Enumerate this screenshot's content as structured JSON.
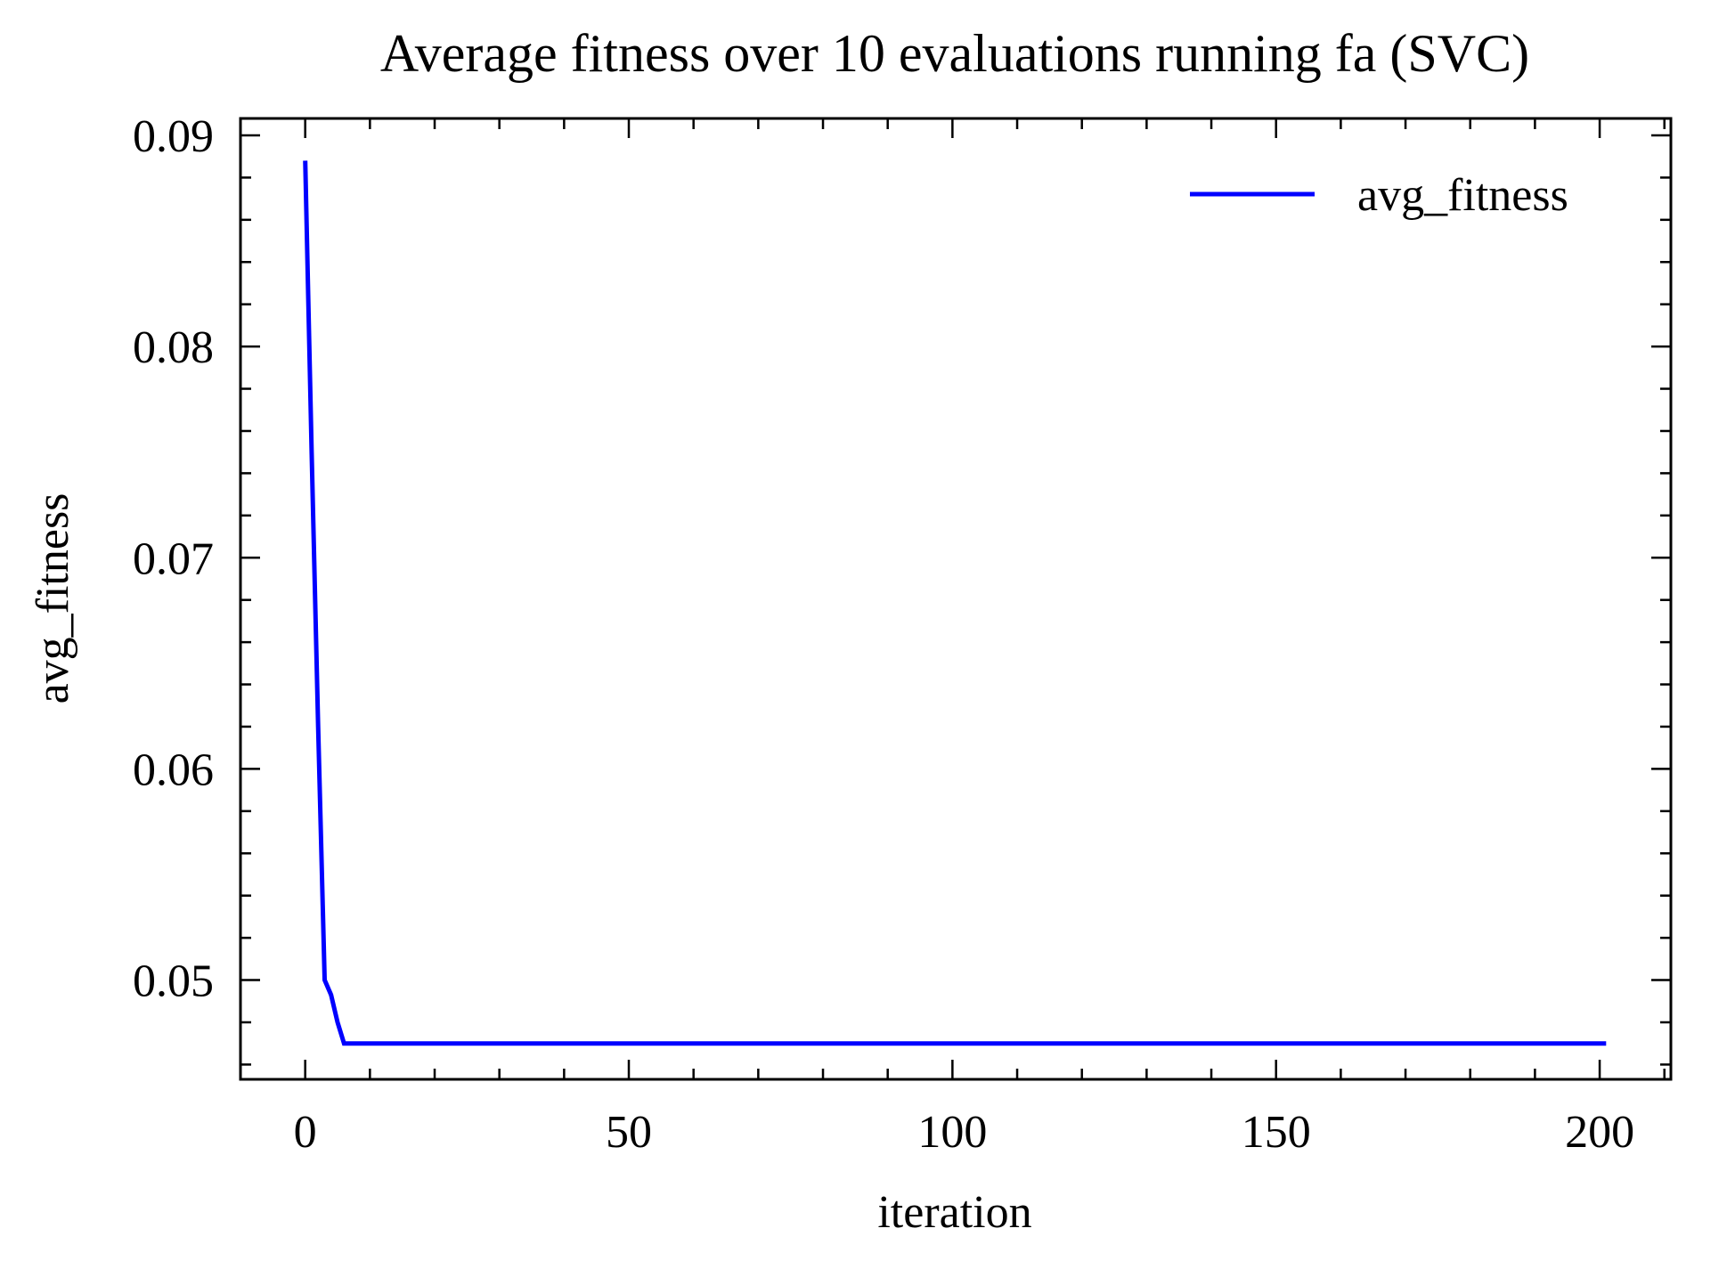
{
  "chart_data": {
    "type": "line",
    "title": "Average fitness over 10 evaluations running fa (SVC)",
    "xlabel": "iteration",
    "ylabel": "avg_fitness",
    "xlim": [
      -10,
      211
    ],
    "ylim": [
      0.0453,
      0.0908
    ],
    "x_ticks": [
      0,
      50,
      100,
      150,
      200
    ],
    "x_tick_labels": [
      "0",
      "50",
      "100",
      "150",
      "200"
    ],
    "x_minor_step": 10,
    "y_ticks": [
      0.05,
      0.06,
      0.07,
      0.08,
      0.09
    ],
    "y_tick_labels": [
      "0.05",
      "0.06",
      "0.07",
      "0.08",
      "0.09"
    ],
    "y_minor_step": 0.002,
    "grid": false,
    "legend_position": "top-right",
    "series": [
      {
        "name": "avg_fitness",
        "color": "#0000ff",
        "x": [
          0,
          1,
          2,
          3,
          4,
          5,
          6,
          201
        ],
        "y": [
          0.0888,
          0.075,
          0.062,
          0.05,
          0.0493,
          0.048,
          0.047,
          0.047
        ]
      }
    ]
  }
}
